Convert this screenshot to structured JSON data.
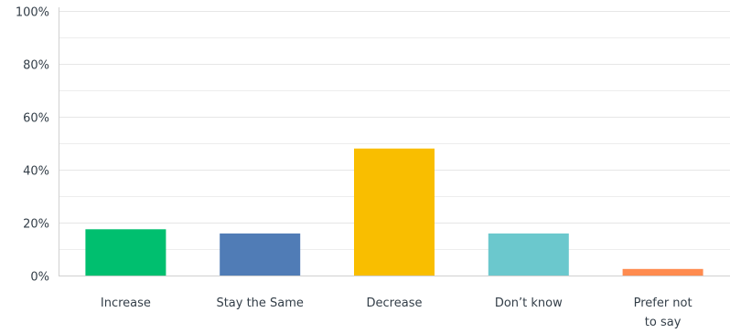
{
  "chart_data": {
    "type": "bar",
    "categories": [
      {
        "lines": [
          "Increase"
        ]
      },
      {
        "lines": [
          "Stay the Same"
        ]
      },
      {
        "lines": [
          "Decrease"
        ]
      },
      {
        "lines": [
          "Don’t know"
        ]
      },
      {
        "lines": [
          "Prefer not",
          "to say"
        ]
      }
    ],
    "values": [
      17.5,
      15.9,
      48.0,
      15.9,
      2.5
    ],
    "colors": [
      "#00bf6f",
      "#507cb6",
      "#f9be00",
      "#6bc8cd",
      "#ff8b4f"
    ],
    "ylim": [
      0,
      100
    ],
    "y_ticks": [
      {
        "value": 0,
        "label": "0%"
      },
      {
        "value": 20,
        "label": "20%"
      },
      {
        "value": 40,
        "label": "40%"
      },
      {
        "value": 60,
        "label": "60%"
      },
      {
        "value": 80,
        "label": "80%"
      },
      {
        "value": 100,
        "label": "100%"
      }
    ],
    "minor_gridlines": [
      10,
      30,
      50,
      70,
      90
    ],
    "grid": true,
    "legend": "none"
  }
}
